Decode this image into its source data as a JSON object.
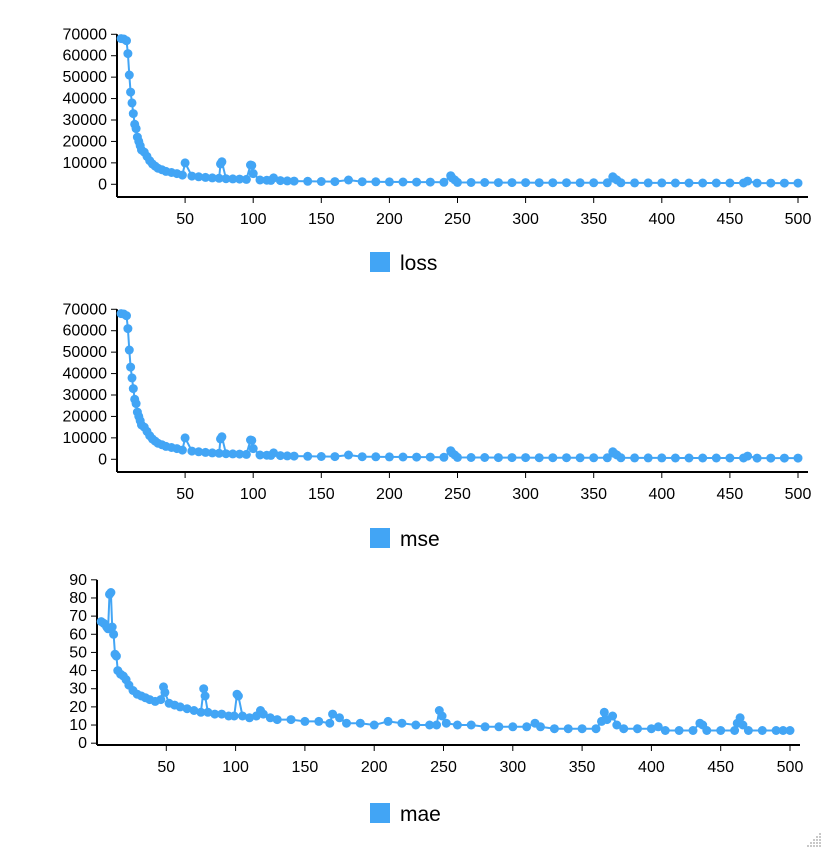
{
  "colors": {
    "series": "#42a5f5",
    "axis": "#000000"
  },
  "icons": {
    "resize": "resize-grip-icon"
  },
  "chart_data": [
    {
      "type": "line",
      "xlabel": "",
      "ylabel": "",
      "xlim": [
        0,
        500
      ],
      "ylim": [
        -5000,
        72000
      ],
      "xticks": [
        50,
        100,
        150,
        200,
        250,
        300,
        350,
        400,
        450,
        500
      ],
      "xtick_labels": [
        "50",
        "100",
        "150",
        "200",
        "250",
        "300",
        "350",
        "400",
        "450",
        "500"
      ],
      "yticks": [
        0,
        10000,
        20000,
        30000,
        40000,
        50000,
        60000,
        70000
      ],
      "ytick_labels": [
        "0",
        "10000",
        "20000",
        "30000",
        "40000",
        "50000",
        "60000",
        "70000"
      ],
      "grid": false,
      "legend": "bottom-center",
      "series": [
        {
          "name": "loss",
          "x": [
            3,
            5,
            7,
            8,
            9,
            10,
            11,
            12,
            13,
            14,
            15,
            16,
            17,
            18,
            20,
            22,
            24,
            26,
            28,
            30,
            33,
            36,
            40,
            44,
            48,
            50,
            55,
            60,
            65,
            70,
            75,
            76,
            77,
            80,
            85,
            90,
            95,
            98,
            99,
            100,
            105,
            110,
            113,
            115,
            120,
            125,
            130,
            140,
            150,
            160,
            170,
            180,
            190,
            200,
            210,
            220,
            230,
            240,
            245,
            246,
            248,
            250,
            260,
            270,
            280,
            290,
            300,
            310,
            320,
            330,
            340,
            350,
            360,
            364,
            365,
            367,
            370,
            380,
            390,
            400,
            410,
            420,
            430,
            440,
            450,
            460,
            463,
            470,
            480,
            490,
            500
          ],
          "y": [
            68000,
            67800,
            67000,
            61000,
            51000,
            43000,
            38000,
            33000,
            28000,
            26000,
            22000,
            20000,
            18000,
            16000,
            15000,
            13000,
            11000,
            9500,
            8500,
            7500,
            6800,
            6000,
            5500,
            5000,
            4300,
            10000,
            3800,
            3500,
            3200,
            3000,
            2800,
            9500,
            10500,
            2600,
            2500,
            2400,
            2300,
            9000,
            8800,
            5000,
            2000,
            1900,
            1800,
            3000,
            1700,
            1600,
            1500,
            1400,
            1300,
            1250,
            2000,
            1200,
            1150,
            1100,
            1050,
            1000,
            1000,
            950,
            4000,
            3000,
            2000,
            900,
            850,
            850,
            800,
            800,
            800,
            750,
            750,
            750,
            700,
            700,
            700,
            3500,
            2800,
            2000,
            700,
            650,
            650,
            650,
            600,
            600,
            600,
            600,
            600,
            600,
            1500,
            550,
            550,
            550,
            550
          ]
        }
      ]
    },
    {
      "type": "line",
      "xlabel": "",
      "ylabel": "",
      "xlim": [
        0,
        500
      ],
      "ylim": [
        -5000,
        72000
      ],
      "xticks": [
        50,
        100,
        150,
        200,
        250,
        300,
        350,
        400,
        450,
        500
      ],
      "xtick_labels": [
        "50",
        "100",
        "150",
        "200",
        "250",
        "300",
        "350",
        "400",
        "450",
        "500"
      ],
      "yticks": [
        0,
        10000,
        20000,
        30000,
        40000,
        50000,
        60000,
        70000
      ],
      "ytick_labels": [
        "0",
        "10000",
        "20000",
        "30000",
        "40000",
        "50000",
        "60000",
        "70000"
      ],
      "grid": false,
      "legend": "bottom-center",
      "series": [
        {
          "name": "mse",
          "x": [
            3,
            5,
            7,
            8,
            9,
            10,
            11,
            12,
            13,
            14,
            15,
            16,
            17,
            18,
            20,
            22,
            24,
            26,
            28,
            30,
            33,
            36,
            40,
            44,
            48,
            50,
            55,
            60,
            65,
            70,
            75,
            76,
            77,
            80,
            85,
            90,
            95,
            98,
            99,
            100,
            105,
            110,
            113,
            115,
            120,
            125,
            130,
            140,
            150,
            160,
            170,
            180,
            190,
            200,
            210,
            220,
            230,
            240,
            245,
            246,
            248,
            250,
            260,
            270,
            280,
            290,
            300,
            310,
            320,
            330,
            340,
            350,
            360,
            364,
            365,
            367,
            370,
            380,
            390,
            400,
            410,
            420,
            430,
            440,
            450,
            460,
            463,
            470,
            480,
            490,
            500
          ],
          "y": [
            68000,
            67800,
            67000,
            61000,
            51000,
            43000,
            38000,
            33000,
            28000,
            26000,
            22000,
            20000,
            18000,
            16000,
            15000,
            13000,
            11000,
            9500,
            8500,
            7500,
            6800,
            6000,
            5500,
            5000,
            4300,
            10000,
            3800,
            3500,
            3200,
            3000,
            2800,
            9500,
            10500,
            2600,
            2500,
            2400,
            2300,
            9000,
            8800,
            5000,
            2000,
            1900,
            1800,
            3000,
            1700,
            1600,
            1500,
            1400,
            1300,
            1250,
            2000,
            1200,
            1150,
            1100,
            1050,
            1000,
            1000,
            950,
            4000,
            3000,
            2000,
            900,
            850,
            850,
            800,
            800,
            800,
            750,
            750,
            750,
            700,
            700,
            700,
            3500,
            2800,
            2000,
            700,
            650,
            650,
            650,
            600,
            600,
            600,
            600,
            600,
            600,
            1500,
            550,
            550,
            550,
            550
          ]
        }
      ]
    },
    {
      "type": "line",
      "xlabel": "",
      "ylabel": "",
      "xlim": [
        0,
        500
      ],
      "ylim": [
        -1,
        91
      ],
      "xticks": [
        50,
        100,
        150,
        200,
        250,
        300,
        350,
        400,
        450,
        500
      ],
      "xtick_labels": [
        "50",
        "100",
        "150",
        "200",
        "250",
        "300",
        "350",
        "400",
        "450",
        "500"
      ],
      "yticks": [
        0,
        10,
        20,
        30,
        40,
        50,
        60,
        70,
        80,
        90
      ],
      "ytick_labels": [
        "0",
        "10",
        "20",
        "30",
        "40",
        "50",
        "60",
        "70",
        "80",
        "90"
      ],
      "grid": false,
      "legend": "bottom-center",
      "series": [
        {
          "name": "mae",
          "x": [
            3,
            5,
            7,
            8,
            9,
            10,
            11,
            12,
            13,
            14,
            15,
            17,
            19,
            21,
            23,
            26,
            29,
            32,
            35,
            38,
            42,
            46,
            48,
            49,
            52,
            56,
            60,
            65,
            70,
            75,
            77,
            78,
            80,
            85,
            90,
            95,
            99,
            101,
            102,
            105,
            110,
            115,
            118,
            120,
            125,
            130,
            140,
            150,
            160,
            168,
            170,
            175,
            180,
            190,
            200,
            210,
            220,
            230,
            240,
            245,
            247,
            249,
            252,
            260,
            270,
            280,
            290,
            300,
            310,
            316,
            320,
            330,
            340,
            350,
            360,
            364,
            366,
            368,
            372,
            375,
            380,
            390,
            400,
            405,
            410,
            420,
            430,
            435,
            437,
            440,
            450,
            460,
            462,
            464,
            466,
            470,
            480,
            490,
            495,
            500
          ],
          "y": [
            67,
            66,
            64,
            63,
            82,
            83,
            64,
            60,
            49,
            48,
            40,
            38,
            37,
            35,
            32,
            29,
            27,
            26,
            25,
            24,
            23,
            24,
            31,
            28,
            22,
            21,
            20,
            19,
            18,
            17,
            30,
            26,
            17,
            16,
            16,
            15,
            15,
            27,
            26,
            15,
            14,
            15,
            18,
            16,
            14,
            13,
            13,
            12,
            12,
            11,
            16,
            14,
            11,
            11,
            10,
            12,
            11,
            10,
            10,
            10,
            18,
            15,
            11,
            10,
            10,
            9,
            9,
            9,
            9,
            11,
            9,
            8,
            8,
            8,
            8,
            12,
            17,
            13,
            15,
            10,
            8,
            8,
            8,
            9,
            7,
            7,
            7,
            11,
            10,
            7,
            7,
            7,
            11,
            14,
            10,
            7,
            7,
            7,
            7,
            7
          ]
        }
      ]
    }
  ]
}
